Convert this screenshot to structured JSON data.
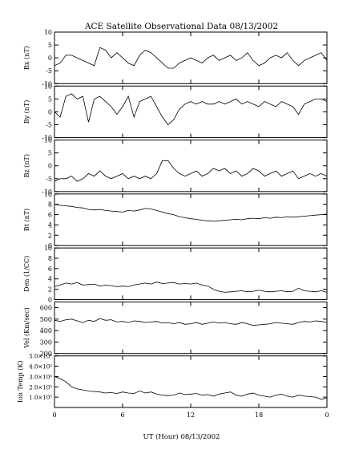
{
  "chart_data": {
    "type": "line",
    "title": "ACE Satellite Observational Data   08/13/2002",
    "xlabel": "UT (Hour)   08/13/2002",
    "xlim": [
      0,
      24
    ],
    "xtick_labels": [
      "0",
      "6",
      "12",
      "18",
      "0"
    ],
    "panels": [
      {
        "ylabel": "Bx (nT)",
        "ylim": [
          -10,
          10
        ],
        "yticks": [
          "-10",
          "-5",
          "0",
          "5",
          "10"
        ],
        "x": [
          0,
          0.5,
          1,
          1.5,
          2,
          2.5,
          3,
          3.5,
          4,
          4.5,
          5,
          5.5,
          6,
          6.5,
          7,
          7.5,
          8,
          8.5,
          9,
          9.5,
          10,
          10.5,
          11,
          11.5,
          12,
          12.5,
          13,
          13.5,
          14,
          14.5,
          15,
          15.5,
          16,
          16.5,
          17,
          17.5,
          18,
          18.5,
          19,
          19.5,
          20,
          20.5,
          21,
          21.5,
          22,
          22.5,
          23,
          23.5,
          24
        ],
        "y": [
          -3,
          -2,
          1,
          1,
          0,
          -1,
          -2,
          -3,
          4,
          3,
          0,
          2,
          0,
          -2,
          -3,
          1,
          3,
          2,
          0,
          -2,
          -4,
          -4,
          -2,
          -1,
          0,
          -1,
          -2,
          0,
          1,
          -1,
          0,
          1,
          -1,
          0,
          2,
          -1,
          -3,
          -2,
          0,
          1,
          0,
          2,
          -1,
          -3,
          -1,
          0,
          1,
          2,
          -1
        ]
      },
      {
        "ylabel": "By (nT)",
        "ylim": [
          -10,
          10
        ],
        "yticks": [
          "-10",
          "-5",
          "0",
          "5",
          "10"
        ],
        "x": [
          0,
          0.5,
          1,
          1.5,
          2,
          2.5,
          3,
          3.5,
          4,
          4.5,
          5,
          5.5,
          6,
          6.5,
          7,
          7.5,
          8,
          8.5,
          9,
          9.5,
          10,
          10.5,
          11,
          11.5,
          12,
          12.5,
          13,
          13.5,
          14,
          14.5,
          15,
          15.5,
          16,
          16.5,
          17,
          17.5,
          18,
          18.5,
          19,
          19.5,
          20,
          20.5,
          21,
          21.5,
          22,
          22.5,
          23,
          23.5,
          24
        ],
        "y": [
          0,
          -2,
          6,
          7,
          5,
          6,
          -4,
          5,
          6,
          4,
          2,
          -1,
          2,
          6,
          -2,
          4,
          5,
          6,
          2,
          -2,
          -5,
          -3,
          1,
          3,
          4,
          3,
          4,
          3,
          3,
          4,
          3,
          4,
          5,
          3,
          4,
          3,
          2,
          4,
          3,
          2,
          4,
          3,
          2,
          -1,
          3,
          4,
          5,
          5,
          4
        ]
      },
      {
        "ylabel": "Bz (nT)",
        "ylim": [
          -10,
          10
        ],
        "yticks": [
          "-10",
          "-5",
          "0",
          "5",
          "10"
        ],
        "x": [
          0,
          0.5,
          1,
          1.5,
          2,
          2.5,
          3,
          3.5,
          4,
          4.5,
          5,
          5.5,
          6,
          6.5,
          7,
          7.5,
          8,
          8.5,
          9,
          9.5,
          10,
          10.5,
          11,
          11.5,
          12,
          12.5,
          13,
          13.5,
          14,
          14.5,
          15,
          15.5,
          16,
          16.5,
          17,
          17.5,
          18,
          18.5,
          19,
          19.5,
          20,
          20.5,
          21,
          21.5,
          22,
          22.5,
          23,
          23.5,
          24
        ],
        "y": [
          -6,
          -5,
          -5,
          -4,
          -6,
          -5,
          -3,
          -4,
          -2,
          -4,
          -5,
          -4,
          -3,
          -5,
          -4,
          -5,
          -4,
          -5,
          -3,
          2,
          2,
          -1,
          -3,
          -4,
          -3,
          -2,
          -4,
          -3,
          -1,
          -2,
          -1,
          -3,
          -2,
          -4,
          -3,
          -1,
          -2,
          -4,
          -3,
          -2,
          -4,
          -3,
          -2,
          -5,
          -4,
          -3,
          -4,
          -3,
          -4
        ]
      },
      {
        "ylabel": "Bt (nT)",
        "ylim": [
          0,
          10
        ],
        "yticks": [
          "0",
          "2",
          "4",
          "6",
          "8",
          "10"
        ],
        "x": [
          0,
          0.5,
          1,
          1.5,
          2,
          2.5,
          3,
          3.5,
          4,
          4.5,
          5,
          5.5,
          6,
          6.5,
          7,
          7.5,
          8,
          8.5,
          9,
          9.5,
          10,
          10.5,
          11,
          11.5,
          12,
          12.5,
          13,
          13.5,
          14,
          14.5,
          15,
          15.5,
          16,
          16.5,
          17,
          17.5,
          18,
          18.5,
          19,
          19.5,
          20,
          20.5,
          21,
          21.5,
          22,
          22.5,
          23,
          23.5,
          24
        ],
        "y": [
          8,
          7.8,
          7.7,
          7.6,
          7.4,
          7.3,
          7,
          6.9,
          7,
          6.8,
          6.7,
          6.6,
          6.5,
          6.8,
          6.7,
          6.9,
          7.2,
          7.1,
          6.8,
          6.5,
          6.2,
          6,
          5.6,
          5.4,
          5.2,
          5.1,
          4.9,
          4.8,
          4.7,
          4.8,
          4.9,
          5,
          5.1,
          5,
          5.2,
          5.3,
          5.2,
          5.4,
          5.3,
          5.5,
          5.4,
          5.6,
          5.5,
          5.6,
          5.7,
          5.8,
          5.9,
          6,
          6.1
        ]
      },
      {
        "ylabel": "Den (1/CC)",
        "ylim": [
          0,
          10
        ],
        "yticks": [
          "0",
          "2",
          "4",
          "6",
          "8",
          "10"
        ],
        "x": [
          0,
          0.5,
          1,
          1.5,
          2,
          2.5,
          3,
          3.5,
          4,
          4.5,
          5,
          5.5,
          6,
          6.5,
          7,
          7.5,
          8,
          8.5,
          9,
          9.5,
          10,
          10.5,
          11,
          11.5,
          12,
          12.5,
          13,
          13.5,
          14,
          14.5,
          15,
          15.5,
          16,
          16.5,
          17,
          17.5,
          18,
          18.5,
          19,
          19.5,
          20,
          20.5,
          21,
          21.5,
          22,
          22.5,
          23,
          23.5,
          24
        ],
        "y": [
          2.5,
          2.8,
          3.2,
          3,
          3.3,
          2.8,
          2.9,
          3,
          2.6,
          2.8,
          2.7,
          2.5,
          2.6,
          2.5,
          2.8,
          3,
          3.2,
          3,
          3.4,
          3.1,
          3.2,
          3.3,
          3,
          3.1,
          3,
          3.2,
          2.8,
          2.6,
          2,
          1.6,
          1.4,
          1.5,
          1.6,
          1.7,
          1.5,
          1.6,
          1.8,
          1.6,
          1.5,
          1.6,
          1.7,
          1.5,
          1.6,
          2.2,
          1.7,
          1.6,
          1.5,
          1.7,
          1.4
        ]
      },
      {
        "ylabel": "Vel (Km/sec)",
        "ylim": [
          200,
          650
        ],
        "yticks": [
          "200",
          "300",
          "400",
          "500",
          "600"
        ],
        "x": [
          0,
          0.5,
          1,
          1.5,
          2,
          2.5,
          3,
          3.5,
          4,
          4.5,
          5,
          5.5,
          6,
          6.5,
          7,
          7.5,
          8,
          8.5,
          9,
          9.5,
          10,
          10.5,
          11,
          11.5,
          12,
          12.5,
          13,
          13.5,
          14,
          14.5,
          15,
          15.5,
          16,
          16.5,
          17,
          17.5,
          18,
          18.5,
          19,
          19.5,
          20,
          20.5,
          21,
          21.5,
          22,
          22.5,
          23,
          23.5,
          24
        ],
        "y": [
          490,
          480,
          495,
          500,
          485,
          470,
          490,
          480,
          505,
          490,
          495,
          475,
          480,
          470,
          485,
          480,
          470,
          475,
          480,
          465,
          470,
          460,
          470,
          455,
          460,
          470,
          455,
          465,
          475,
          465,
          470,
          460,
          455,
          470,
          460,
          445,
          450,
          455,
          460,
          470,
          465,
          460,
          455,
          470,
          480,
          475,
          485,
          480,
          470
        ]
      },
      {
        "ylabel": "Ion Temp (K)",
        "ylim": [
          0,
          500000.0
        ],
        "yticks": [
          "1.0×10⁵",
          "2.0×10⁵",
          "3.0×10⁵",
          "4.0×10⁵",
          "5.0×10⁵"
        ],
        "x": [
          0,
          0.5,
          1,
          1.5,
          2,
          2.5,
          3,
          3.5,
          4,
          4.5,
          5,
          5.5,
          6,
          6.5,
          7,
          7.5,
          8,
          8.5,
          9,
          9.5,
          10,
          10.5,
          11,
          11.5,
          12,
          12.5,
          13,
          13.5,
          14,
          14.5,
          15,
          15.5,
          16,
          16.5,
          17,
          17.5,
          18,
          18.5,
          19,
          19.5,
          20,
          20.5,
          21,
          21.5,
          22,
          22.5,
          23,
          23.5,
          24
        ],
        "y": [
          300000,
          280000,
          250000,
          200000,
          180000,
          170000,
          160000,
          155000,
          150000,
          140000,
          145000,
          135000,
          150000,
          140000,
          135000,
          160000,
          140000,
          150000,
          130000,
          120000,
          115000,
          120000,
          140000,
          125000,
          130000,
          135000,
          120000,
          125000,
          110000,
          130000,
          140000,
          150000,
          120000,
          110000,
          130000,
          140000,
          120000,
          110000,
          100000,
          120000,
          130000,
          110000,
          100000,
          120000,
          110000,
          105000,
          100000,
          80000,
          90000
        ]
      }
    ]
  }
}
